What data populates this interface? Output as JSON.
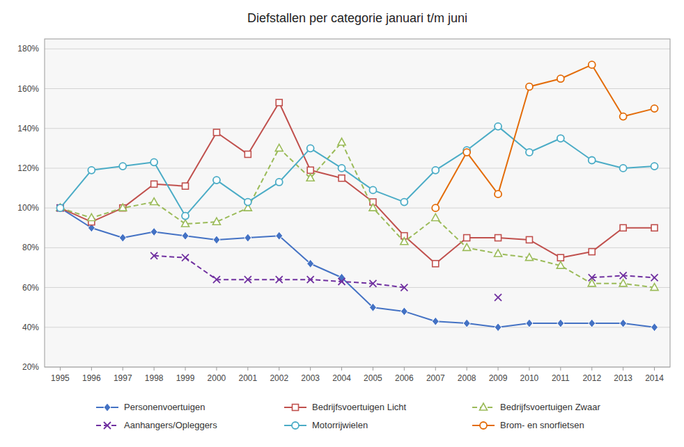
{
  "chart_data": {
    "type": "line",
    "title": "Diefstallen per categorie januari t/m juni",
    "x": [
      1995,
      1996,
      1997,
      1998,
      1999,
      2000,
      2001,
      2002,
      2003,
      2004,
      2005,
      2006,
      2007,
      2008,
      2009,
      2010,
      2011,
      2012,
      2013,
      2014
    ],
    "xlim": [
      1994.5,
      2014.5
    ],
    "xticks": [
      1995,
      1996,
      1997,
      1998,
      1999,
      2000,
      2001,
      2002,
      2003,
      2004,
      2005,
      2006,
      2007,
      2008,
      2009,
      2010,
      2011,
      2012,
      2013,
      2014
    ],
    "ylim": [
      20,
      185
    ],
    "yticks": [
      {
        "value": 20,
        "label": "20%"
      },
      {
        "value": 40,
        "label": "40%"
      },
      {
        "value": 60,
        "label": "60%"
      },
      {
        "value": 80,
        "label": "80%"
      },
      {
        "value": 100,
        "label": "100%"
      },
      {
        "value": 120,
        "label": "120%"
      },
      {
        "value": 140,
        "label": "140%"
      },
      {
        "value": 160,
        "label": "160%"
      },
      {
        "value": 180,
        "label": "180%"
      }
    ],
    "grid": true,
    "legend": "bottom",
    "series": [
      {
        "name": "Personenvoertuigen",
        "color": "#4472C4",
        "marker": "diamond",
        "line_style": "solid",
        "values": [
          100,
          90,
          85,
          88,
          86,
          84,
          85,
          86,
          72,
          65,
          50,
          48,
          43,
          42,
          40,
          42,
          42,
          42,
          42,
          40
        ]
      },
      {
        "name": "Bedrijfsvoertuigen Licht",
        "color": "#C0504D",
        "marker": "square",
        "line_style": "solid",
        "values": [
          100,
          93,
          100,
          112,
          111,
          138,
          127,
          153,
          119,
          115,
          103,
          86,
          72,
          85,
          85,
          84,
          75,
          78,
          90,
          90
        ]
      },
      {
        "name": "Bedrijfsvoertuigen Zwaar",
        "color": "#9BBB59",
        "marker": "triangle",
        "line_style": "dashed",
        "values": [
          100,
          95,
          100,
          103,
          92,
          93,
          100,
          130,
          115,
          133,
          100,
          83,
          95,
          80,
          77,
          75,
          71,
          62,
          62,
          60
        ]
      },
      {
        "name": "Aanhangers/Opleggers",
        "color": "#7030A0",
        "marker": "x",
        "line_style": "dashed",
        "values": [
          100,
          null,
          null,
          76,
          75,
          64,
          64,
          64,
          64,
          63,
          62,
          60,
          null,
          null,
          55,
          null,
          null,
          65,
          66,
          65
        ]
      },
      {
        "name": "Motorrijwielen",
        "color": "#4BACC6",
        "marker": "circle",
        "line_style": "solid",
        "values": [
          100,
          119,
          121,
          123,
          96,
          114,
          103,
          113,
          130,
          120,
          109,
          103,
          119,
          129,
          141,
          128,
          135,
          124,
          120,
          121
        ]
      },
      {
        "name": "Brom- en snorfietsen",
        "color": "#E36C09",
        "marker": "circle",
        "line_style": "solid",
        "values": [
          null,
          null,
          null,
          null,
          null,
          null,
          null,
          null,
          null,
          null,
          null,
          null,
          100,
          128,
          107,
          161,
          165,
          172,
          146,
          150
        ]
      }
    ]
  }
}
